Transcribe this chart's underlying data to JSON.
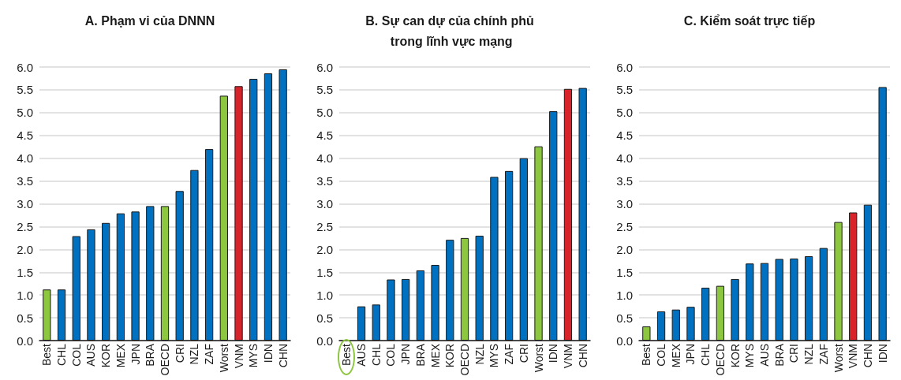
{
  "chart_data": [
    {
      "type": "bar",
      "title": "A. Phạm vi của DNNN",
      "categories": [
        "Best",
        "CHL",
        "COL",
        "AUS",
        "KOR",
        "MEX",
        "JPN",
        "BRA",
        "OECD",
        "CRI",
        "NZL",
        "ZAF",
        "Worst",
        "VNM",
        "MYS",
        "IDN",
        "CHN"
      ],
      "values": [
        1.12,
        1.12,
        2.29,
        2.44,
        2.58,
        2.79,
        2.83,
        2.95,
        2.95,
        3.28,
        3.74,
        4.2,
        5.37,
        5.58,
        5.74,
        5.86,
        5.95
      ],
      "colors": [
        "#8dc63f",
        "#0070c0",
        "#0070c0",
        "#0070c0",
        "#0070c0",
        "#0070c0",
        "#0070c0",
        "#0070c0",
        "#8dc63f",
        "#0070c0",
        "#0070c0",
        "#0070c0",
        "#8dc63f",
        "#d9232b",
        "#0070c0",
        "#0070c0",
        "#0070c0"
      ],
      "ylim": [
        0,
        6
      ],
      "yticks": [
        {
          "value": 0,
          "label": "0.0"
        },
        {
          "value": 0.5,
          "label": "0.5"
        },
        {
          "value": 1,
          "label": "1.0"
        },
        {
          "value": 1.5,
          "label": "1.5"
        },
        {
          "value": 2,
          "label": "2.0"
        },
        {
          "value": 2.5,
          "label": "2.5"
        },
        {
          "value": 3,
          "label": "3.0"
        },
        {
          "value": 3.5,
          "label": "3.5"
        },
        {
          "value": 4,
          "label": "4.0"
        },
        {
          "value": 4.5,
          "label": "4.5"
        },
        {
          "value": 5,
          "label": "5.0"
        },
        {
          "value": 5.5,
          "label": "5.5"
        },
        {
          "value": 6,
          "label": "6.0"
        }
      ],
      "grid": "y"
    },
    {
      "type": "bar",
      "title": "B. Sự can dự của chính phủ trong lĩnh vực mạng",
      "categories": [
        "Best",
        "AUS",
        "CHL",
        "COL",
        "JPN",
        "BRA",
        "MEX",
        "KOR",
        "OECD",
        "NZL",
        "MYS",
        "ZAF",
        "CRI",
        "Worst",
        "IDN",
        "VNM",
        "CHN"
      ],
      "values": [
        0,
        0.75,
        0.79,
        1.34,
        1.35,
        1.54,
        1.66,
        2.21,
        2.25,
        2.3,
        3.59,
        3.72,
        4.0,
        4.26,
        5.03,
        5.52,
        5.54
      ],
      "colors": [
        "#8dc63f",
        "#0070c0",
        "#0070c0",
        "#0070c0",
        "#0070c0",
        "#0070c0",
        "#0070c0",
        "#0070c0",
        "#8dc63f",
        "#0070c0",
        "#0070c0",
        "#0070c0",
        "#0070c0",
        "#8dc63f",
        "#0070c0",
        "#d9232b",
        "#0070c0"
      ],
      "ylim": [
        0,
        6
      ],
      "yticks": [
        {
          "value": 0,
          "label": "0.0"
        },
        {
          "value": 0.5,
          "label": "0.5"
        },
        {
          "value": 1,
          "label": "1.0"
        },
        {
          "value": 1.5,
          "label": "1.5"
        },
        {
          "value": 2,
          "label": "2.0"
        },
        {
          "value": 2.5,
          "label": "2.5"
        },
        {
          "value": 3,
          "label": "3.0"
        },
        {
          "value": 3.5,
          "label": "3.5"
        },
        {
          "value": 4,
          "label": "4.0"
        },
        {
          "value": 4.5,
          "label": "4.5"
        },
        {
          "value": 5,
          "label": "5.0"
        },
        {
          "value": 5.5,
          "label": "5.5"
        },
        {
          "value": 6,
          "label": "6.0"
        }
      ],
      "grid": "y"
    },
    {
      "type": "bar",
      "title": "C. Kiểm soát trực tiếp",
      "categories": [
        "Best",
        "COL",
        "MEX",
        "JPN",
        "CHL",
        "OECD",
        "KOR",
        "MYS",
        "AUS",
        "BRA",
        "CRI",
        "NZL",
        "ZAF",
        "Worst",
        "VNM",
        "CHN",
        "IDN"
      ],
      "values": [
        0.31,
        0.64,
        0.68,
        0.74,
        1.16,
        1.2,
        1.35,
        1.69,
        1.7,
        1.79,
        1.8,
        1.85,
        2.03,
        2.6,
        2.81,
        2.98,
        5.56
      ],
      "colors": [
        "#8dc63f",
        "#0070c0",
        "#0070c0",
        "#0070c0",
        "#0070c0",
        "#8dc63f",
        "#0070c0",
        "#0070c0",
        "#0070c0",
        "#0070c0",
        "#0070c0",
        "#0070c0",
        "#0070c0",
        "#8dc63f",
        "#d9232b",
        "#0070c0",
        "#0070c0"
      ],
      "ylim": [
        0,
        6
      ],
      "yticks": [
        {
          "value": 0,
          "label": "0.0"
        },
        {
          "value": 0.5,
          "label": "0.5"
        },
        {
          "value": 1,
          "label": "1.0"
        },
        {
          "value": 1.5,
          "label": "1.5"
        },
        {
          "value": 2,
          "label": "2.0"
        },
        {
          "value": 2.5,
          "label": "2.5"
        },
        {
          "value": 3,
          "label": "3.0"
        },
        {
          "value": 3.5,
          "label": "3.5"
        },
        {
          "value": 4,
          "label": "4.0"
        },
        {
          "value": 4.5,
          "label": "4.5"
        },
        {
          "value": 5,
          "label": "5.0"
        },
        {
          "value": 5.5,
          "label": "5.5"
        },
        {
          "value": 6,
          "label": "6.0"
        }
      ],
      "grid": "y"
    }
  ]
}
